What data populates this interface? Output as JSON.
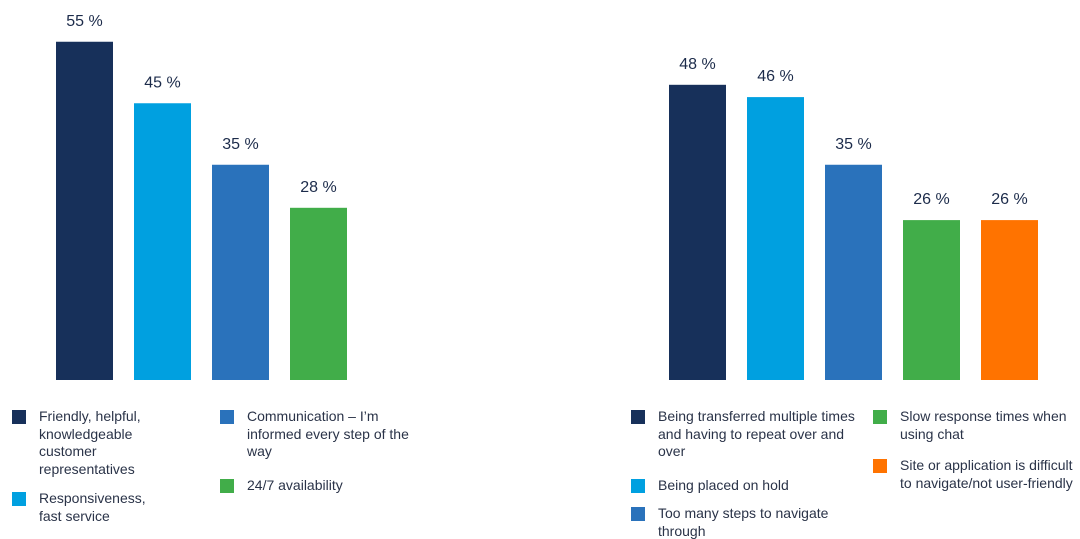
{
  "chart_data": [
    {
      "type": "bar",
      "categories": [
        "Friendly, helpful, knowledgeable customer representatives",
        "Responsiveness, fast service",
        "Communication – I’m informed every step of the way",
        "24/7 availability"
      ],
      "values": [
        55,
        45,
        35,
        28
      ],
      "value_labels": [
        "55 %",
        "45 %",
        "35 %",
        "28 %"
      ],
      "colors": [
        "#17305a",
        "#00a0e0",
        "#2a72bb",
        "#41ad49"
      ]
    },
    {
      "type": "bar",
      "categories": [
        "Being transferred multiple times and having to repeat over and over",
        "Being placed on hold",
        "Too many steps to navigate through",
        "Slow response times when using chat",
        "Site or application is difficult to navigate/not user-friendly"
      ],
      "values": [
        48,
        46,
        35,
        26,
        26
      ],
      "value_labels": [
        "48 %",
        "46 %",
        "35 %",
        "26 %",
        "26 %"
      ],
      "colors": [
        "#17305a",
        "#00a0e0",
        "#2a72bb",
        "#41ad49",
        "#ff7300"
      ]
    }
  ]
}
